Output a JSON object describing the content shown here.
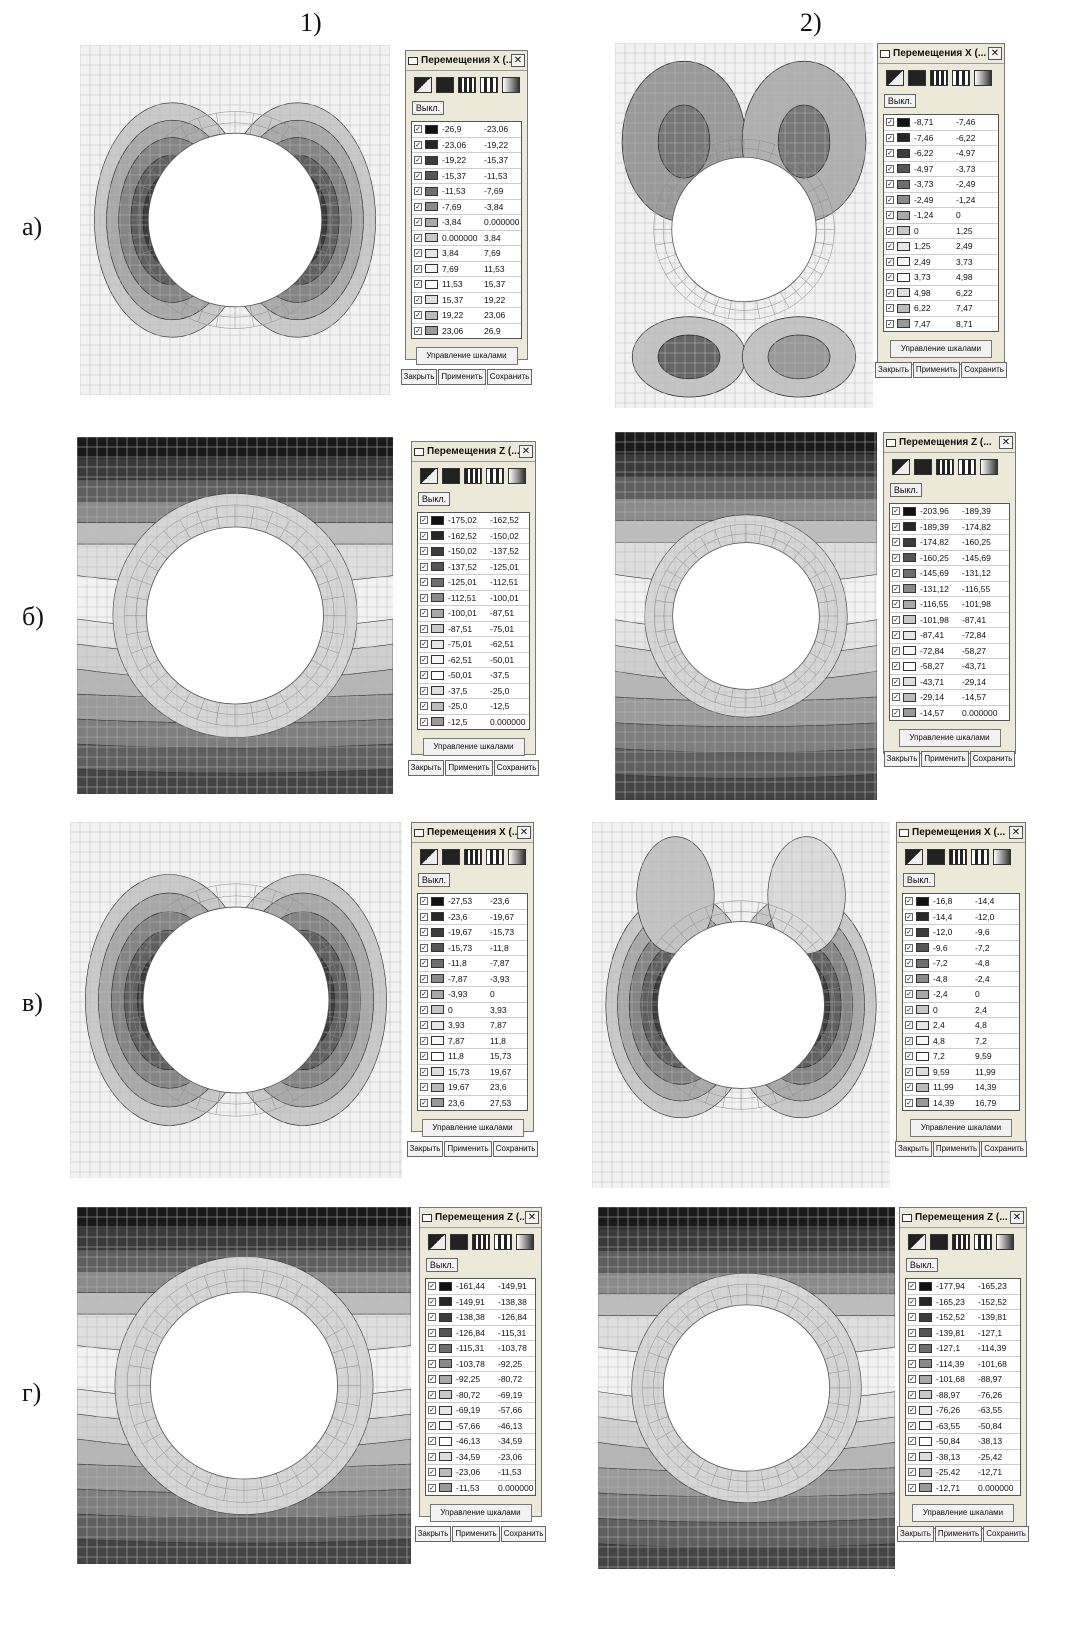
{
  "column_headers": [
    "1)",
    "2)"
  ],
  "row_labels": [
    "а)",
    "б)",
    "в)",
    "г)"
  ],
  "tool_icons": [
    "fill-mode-icon",
    "solid-fill-icon",
    "stripes-icon",
    "bars-icon",
    "gradient-icon"
  ],
  "panels": [
    {
      "title": "Перемещения X (...",
      "off": "Выкл.",
      "scale": "Управление шкалами",
      "close": "Закрыть",
      "apply": "Применить",
      "save": "Сохранить",
      "ranges": [
        [
          "-26,9",
          "-23,06"
        ],
        [
          "-23,06",
          "-19,22"
        ],
        [
          "-19,22",
          "-15,37"
        ],
        [
          "-15,37",
          "-11,53"
        ],
        [
          "-11,53",
          "-7,69"
        ],
        [
          "-7,69",
          "-3,84"
        ],
        [
          "-3,84",
          "0.000000"
        ],
        [
          "0.000000",
          "3,84"
        ],
        [
          "3,84",
          "7,69"
        ],
        [
          "7,69",
          "11,53"
        ],
        [
          "11,53",
          "15,37"
        ],
        [
          "15,37",
          "19,22"
        ],
        [
          "19,22",
          "23,06"
        ],
        [
          "23,06",
          "26,9"
        ]
      ]
    },
    {
      "title": "Перемещения X (...",
      "off": "Выкл.",
      "scale": "Управление шкалами",
      "close": "Закрыть",
      "apply": "Применить",
      "save": "Сохранить",
      "ranges": [
        [
          "-8,71",
          "-7,46"
        ],
        [
          "-7,46",
          "-6,22"
        ],
        [
          "-6,22",
          "-4,97"
        ],
        [
          "-4,97",
          "-3,73"
        ],
        [
          "-3,73",
          "-2,49"
        ],
        [
          "-2,49",
          "-1,24"
        ],
        [
          "-1,24",
          "0"
        ],
        [
          "0",
          "1,25"
        ],
        [
          "1,25",
          "2,49"
        ],
        [
          "2,49",
          "3,73"
        ],
        [
          "3,73",
          "4,98"
        ],
        [
          "4,98",
          "6,22"
        ],
        [
          "6,22",
          "7,47"
        ],
        [
          "7,47",
          "8,71"
        ]
      ]
    },
    {
      "title": "Перемещения Z (...",
      "off": "Выкл.",
      "scale": "Управление шкалами",
      "close": "Закрыть",
      "apply": "Применить",
      "save": "Сохранить",
      "ranges": [
        [
          "-175,02",
          "-162,52"
        ],
        [
          "-162,52",
          "-150,02"
        ],
        [
          "-150,02",
          "-137,52"
        ],
        [
          "-137,52",
          "-125,01"
        ],
        [
          "-125,01",
          "-112,51"
        ],
        [
          "-112,51",
          "-100,01"
        ],
        [
          "-100,01",
          "-87,51"
        ],
        [
          "-87,51",
          "-75,01"
        ],
        [
          "-75,01",
          "-62,51"
        ],
        [
          "-62,51",
          "-50,01"
        ],
        [
          "-50,01",
          "-37,5"
        ],
        [
          "-37,5",
          "-25,0"
        ],
        [
          "-25,0",
          "-12,5"
        ],
        [
          "-12,5",
          "0.000000"
        ]
      ]
    },
    {
      "title": "Перемещения Z (...",
      "off": "Выкл.",
      "scale": "Управление шкалами",
      "close": "Закрыть",
      "apply": "Применить",
      "save": "Сохранить",
      "ranges": [
        [
          "-203,96",
          "-189,39"
        ],
        [
          "-189,39",
          "-174,82"
        ],
        [
          "-174,82",
          "-160,25"
        ],
        [
          "-160,25",
          "-145,69"
        ],
        [
          "-145,69",
          "-131,12"
        ],
        [
          "-131,12",
          "-116,55"
        ],
        [
          "-116,55",
          "-101,98"
        ],
        [
          "-101,98",
          "-87,41"
        ],
        [
          "-87,41",
          "-72,84"
        ],
        [
          "-72,84",
          "-58,27"
        ],
        [
          "-58,27",
          "-43,71"
        ],
        [
          "-43,71",
          "-29,14"
        ],
        [
          "-29,14",
          "-14,57"
        ],
        [
          "-14,57",
          "0.000000"
        ]
      ]
    },
    {
      "title": "Перемещения X (...",
      "off": "Выкл.",
      "scale": "Управление шкалами",
      "close": "Закрыть",
      "apply": "Применить",
      "save": "Сохранить",
      "ranges": [
        [
          "-27,53",
          "-23,6"
        ],
        [
          "-23,6",
          "-19,67"
        ],
        [
          "-19,67",
          "-15,73"
        ],
        [
          "-15,73",
          "-11,8"
        ],
        [
          "-11,8",
          "-7,87"
        ],
        [
          "-7,87",
          "-3,93"
        ],
        [
          "-3,93",
          "0"
        ],
        [
          "0",
          "3,93"
        ],
        [
          "3,93",
          "7,87"
        ],
        [
          "7,87",
          "11,8"
        ],
        [
          "11,8",
          "15,73"
        ],
        [
          "15,73",
          "19,67"
        ],
        [
          "19,67",
          "23,6"
        ],
        [
          "23,6",
          "27,53"
        ]
      ]
    },
    {
      "title": "Перемещения X (...",
      "off": "Выкл.",
      "scale": "Управление шкалами",
      "close": "Закрыть",
      "apply": "Применить",
      "save": "Сохранить",
      "ranges": [
        [
          "-16,8",
          "-14,4"
        ],
        [
          "-14,4",
          "-12,0"
        ],
        [
          "-12,0",
          "-9,6"
        ],
        [
          "-9,6",
          "-7,2"
        ],
        [
          "-7,2",
          "-4,8"
        ],
        [
          "-4,8",
          "-2,4"
        ],
        [
          "-2,4",
          "0"
        ],
        [
          "0",
          "2,4"
        ],
        [
          "2,4",
          "4,8"
        ],
        [
          "4,8",
          "7,2"
        ],
        [
          "7,2",
          "9,59"
        ],
        [
          "9,59",
          "11,99"
        ],
        [
          "11,99",
          "14,39"
        ],
        [
          "14,39",
          "16,79"
        ]
      ]
    },
    {
      "title": "Перемещения Z (...",
      "off": "Выкл.",
      "scale": "Управление шкалами",
      "close": "Закрыть",
      "apply": "Применить",
      "save": "Сохранить",
      "ranges": [
        [
          "-161,44",
          "-149,91"
        ],
        [
          "-149,91",
          "-138,38"
        ],
        [
          "-138,38",
          "-126,84"
        ],
        [
          "-126,84",
          "-115,31"
        ],
        [
          "-115,31",
          "-103,78"
        ],
        [
          "-103,78",
          "-92,25"
        ],
        [
          "-92,25",
          "-80,72"
        ],
        [
          "-80,72",
          "-69,19"
        ],
        [
          "-69,19",
          "-57,66"
        ],
        [
          "-57,66",
          "-46,13"
        ],
        [
          "-46,13",
          "-34,59"
        ],
        [
          "-34,59",
          "-23,06"
        ],
        [
          "-23,06",
          "-11,53"
        ],
        [
          "-11,53",
          "0.000000"
        ]
      ]
    },
    {
      "title": "Перемещения Z (...",
      "off": "Выкл.",
      "scale": "Управление шкалами",
      "close": "Закрыть",
      "apply": "Применить",
      "save": "Сохранить",
      "ranges": [
        [
          "-177,94",
          "-165,23"
        ],
        [
          "-165,23",
          "-152,52"
        ],
        [
          "-152,52",
          "-139,81"
        ],
        [
          "-139,81",
          "-127,1"
        ],
        [
          "-127,1",
          "-114,39"
        ],
        [
          "-114,39",
          "-101,68"
        ],
        [
          "-101,68",
          "-88,97"
        ],
        [
          "-88,97",
          "-76,26"
        ],
        [
          "-76,26",
          "-63,55"
        ],
        [
          "-63,55",
          "-50,84"
        ],
        [
          "-50,84",
          "-38,13"
        ],
        [
          "-38,13",
          "-25,42"
        ],
        [
          "-25,42",
          "-12,71"
        ],
        [
          "-12,71",
          "0.000000"
        ]
      ]
    }
  ],
  "swatch_colors": [
    "#111111",
    "#262626",
    "#3c3c3c",
    "#555555",
    "#6e6e6e",
    "#8a8a8a",
    "#a8a8a8",
    "#c8c8c8",
    "#e6e6e6",
    "#f6f6f6",
    "#ffffff",
    "#dddddd",
    "#bbbbbb",
    "#999999"
  ]
}
